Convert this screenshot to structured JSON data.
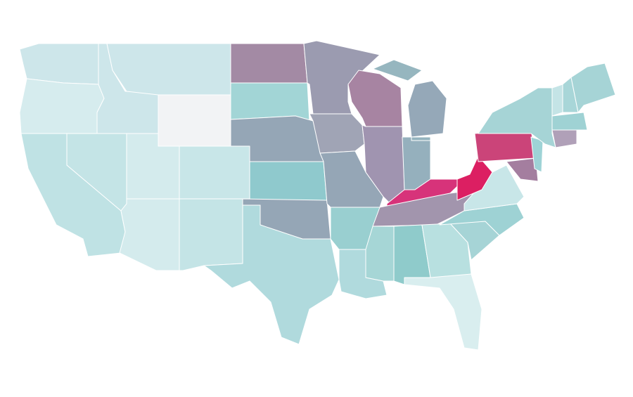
{
  "map": {
    "fills": [
      "#cde6ea",
      "#d6ecee",
      "#bfe2e4",
      "#c4e4e6",
      "#cde6ea",
      "#cde6ea",
      "#f2f3f5",
      "#d4ebed",
      "#d4ebed",
      "#c8e6e8",
      "#c4e4e6",
      "#a38aa4",
      "#a2d5d6",
      "#95a6b6",
      "#8fc9cd",
      "#95a6b6",
      "#b0dadd",
      "#9b9bb0",
      "#a0a4b5",
      "#95a6b6",
      "#99cfd0",
      "#b0dadd",
      "#a784a2",
      "#a094b0",
      "#95a8b8",
      "#96b6bf",
      "#95b0bd",
      "#94b3be",
      "#d7337a",
      "#a295ad",
      "#a6d6d6",
      "#8fcbcb",
      "#b8e0e0",
      "#d9eeef",
      "#a6d4d6",
      "#9ed2d4",
      "#c8e6e8",
      "#dc1f62",
      "#cb4479",
      "#a47e9f",
      "#9ed3d6",
      "#a6d4d6",
      "#c4e4e6",
      "#a8d6d8",
      "#a6d4d6",
      "#9fd2d4",
      "#b0a0b8"
    ]
  }
}
